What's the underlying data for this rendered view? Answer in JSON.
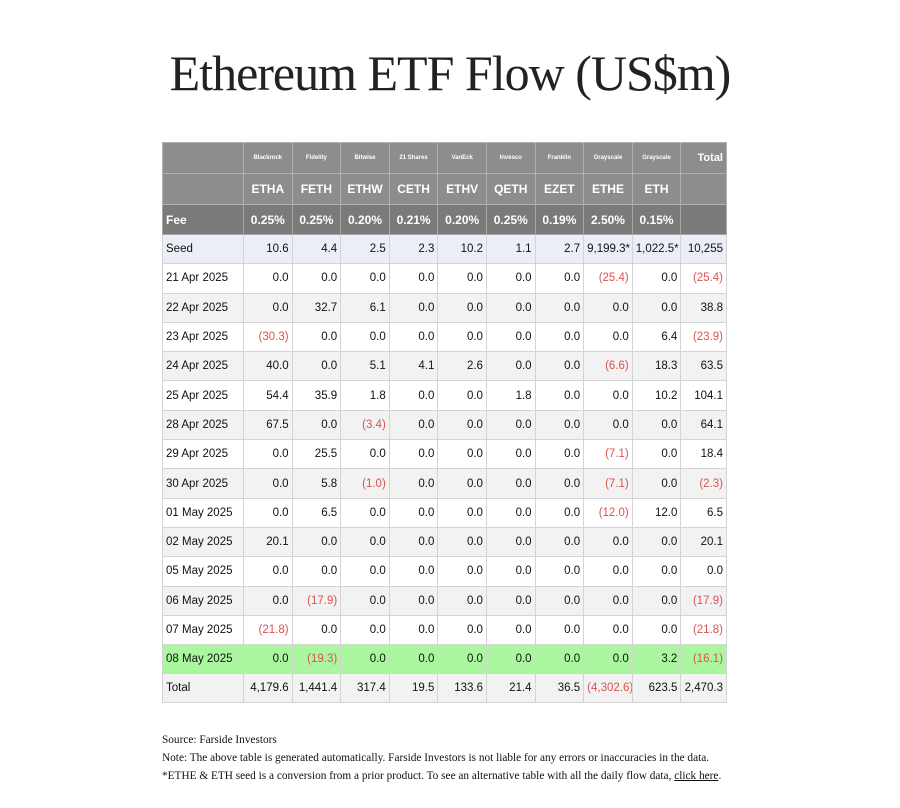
{
  "title": "Ethereum ETF Flow (US$m)",
  "providers": [
    "Blackrock",
    "Fidelity",
    "Bitwise",
    "21 Shares",
    "VanEck",
    "Invesco",
    "Franklin",
    "Grayscale",
    "Grayscale"
  ],
  "tickers": [
    "ETHA",
    "FETH",
    "ETHW",
    "CETH",
    "ETHV",
    "QETH",
    "EZET",
    "ETHE",
    "ETH"
  ],
  "total_label": "Total",
  "fee_label": "Fee",
  "fees": [
    "0.25%",
    "0.25%",
    "0.20%",
    "0.21%",
    "0.20%",
    "0.25%",
    "0.19%",
    "2.50%",
    "0.15%"
  ],
  "seed": {
    "label": "Seed",
    "values": [
      "10.6",
      "4.4",
      "2.5",
      "2.3",
      "10.2",
      "1.1",
      "2.7",
      "9,199.3*",
      "1,022.5*",
      "10,255"
    ]
  },
  "rows": [
    {
      "date": "21 Apr 2025",
      "values": [
        "0.0",
        "0.0",
        "0.0",
        "0.0",
        "0.0",
        "0.0",
        "0.0",
        "(25.4)",
        "0.0",
        "(25.4)"
      ]
    },
    {
      "date": "22 Apr 2025",
      "values": [
        "0.0",
        "32.7",
        "6.1",
        "0.0",
        "0.0",
        "0.0",
        "0.0",
        "0.0",
        "0.0",
        "38.8"
      ]
    },
    {
      "date": "23 Apr 2025",
      "values": [
        "(30.3)",
        "0.0",
        "0.0",
        "0.0",
        "0.0",
        "0.0",
        "0.0",
        "0.0",
        "6.4",
        "(23.9)"
      ]
    },
    {
      "date": "24 Apr 2025",
      "values": [
        "40.0",
        "0.0",
        "5.1",
        "4.1",
        "2.6",
        "0.0",
        "0.0",
        "(6.6)",
        "18.3",
        "63.5"
      ]
    },
    {
      "date": "25 Apr 2025",
      "values": [
        "54.4",
        "35.9",
        "1.8",
        "0.0",
        "0.0",
        "1.8",
        "0.0",
        "0.0",
        "10.2",
        "104.1"
      ]
    },
    {
      "date": "28 Apr 2025",
      "values": [
        "67.5",
        "0.0",
        "(3.4)",
        "0.0",
        "0.0",
        "0.0",
        "0.0",
        "0.0",
        "0.0",
        "64.1"
      ]
    },
    {
      "date": "29 Apr 2025",
      "values": [
        "0.0",
        "25.5",
        "0.0",
        "0.0",
        "0.0",
        "0.0",
        "0.0",
        "(7.1)",
        "0.0",
        "18.4"
      ]
    },
    {
      "date": "30 Apr 2025",
      "values": [
        "0.0",
        "5.8",
        "(1.0)",
        "0.0",
        "0.0",
        "0.0",
        "0.0",
        "(7.1)",
        "0.0",
        "(2.3)"
      ]
    },
    {
      "date": "01 May 2025",
      "values": [
        "0.0",
        "6.5",
        "0.0",
        "0.0",
        "0.0",
        "0.0",
        "0.0",
        "(12.0)",
        "12.0",
        "6.5"
      ]
    },
    {
      "date": "02 May 2025",
      "values": [
        "20.1",
        "0.0",
        "0.0",
        "0.0",
        "0.0",
        "0.0",
        "0.0",
        "0.0",
        "0.0",
        "20.1"
      ]
    },
    {
      "date": "05 May 2025",
      "values": [
        "0.0",
        "0.0",
        "0.0",
        "0.0",
        "0.0",
        "0.0",
        "0.0",
        "0.0",
        "0.0",
        "0.0"
      ]
    },
    {
      "date": "06 May 2025",
      "values": [
        "0.0",
        "(17.9)",
        "0.0",
        "0.0",
        "0.0",
        "0.0",
        "0.0",
        "0.0",
        "0.0",
        "(17.9)"
      ]
    },
    {
      "date": "07 May 2025",
      "values": [
        "(21.8)",
        "0.0",
        "0.0",
        "0.0",
        "0.0",
        "0.0",
        "0.0",
        "0.0",
        "0.0",
        "(21.8)"
      ]
    },
    {
      "date": "08 May 2025",
      "values": [
        "0.0",
        "(19.3)",
        "0.0",
        "0.0",
        "0.0",
        "0.0",
        "0.0",
        "0.0",
        "3.2",
        "(16.1)"
      ],
      "highlight": true
    }
  ],
  "total_row": {
    "label": "Total",
    "values": [
      "4,179.6",
      "1,441.4",
      "317.4",
      "19.5",
      "133.6",
      "21.4",
      "36.5",
      "(4,302.6)",
      "623.5",
      "2,470.3"
    ]
  },
  "source": {
    "line1": "Source: Farside Investors",
    "note": "Note: The above table is generated automatically. Farside Investors is not liable for any errors or inaccuracies in the data. *ETHE & ETH seed is a conversion from a prior product.  To see an alternative table with all the daily flow data, ",
    "link_text": "click here",
    "end": "."
  },
  "colors": {
    "header_bg": "#8d8d8d",
    "fee_bg": "#7a7a7a",
    "negative": "#d9534f",
    "highlight": "#aaf7a0",
    "seed_bg": "#eceef7",
    "stripe": "#f2f2f2"
  }
}
